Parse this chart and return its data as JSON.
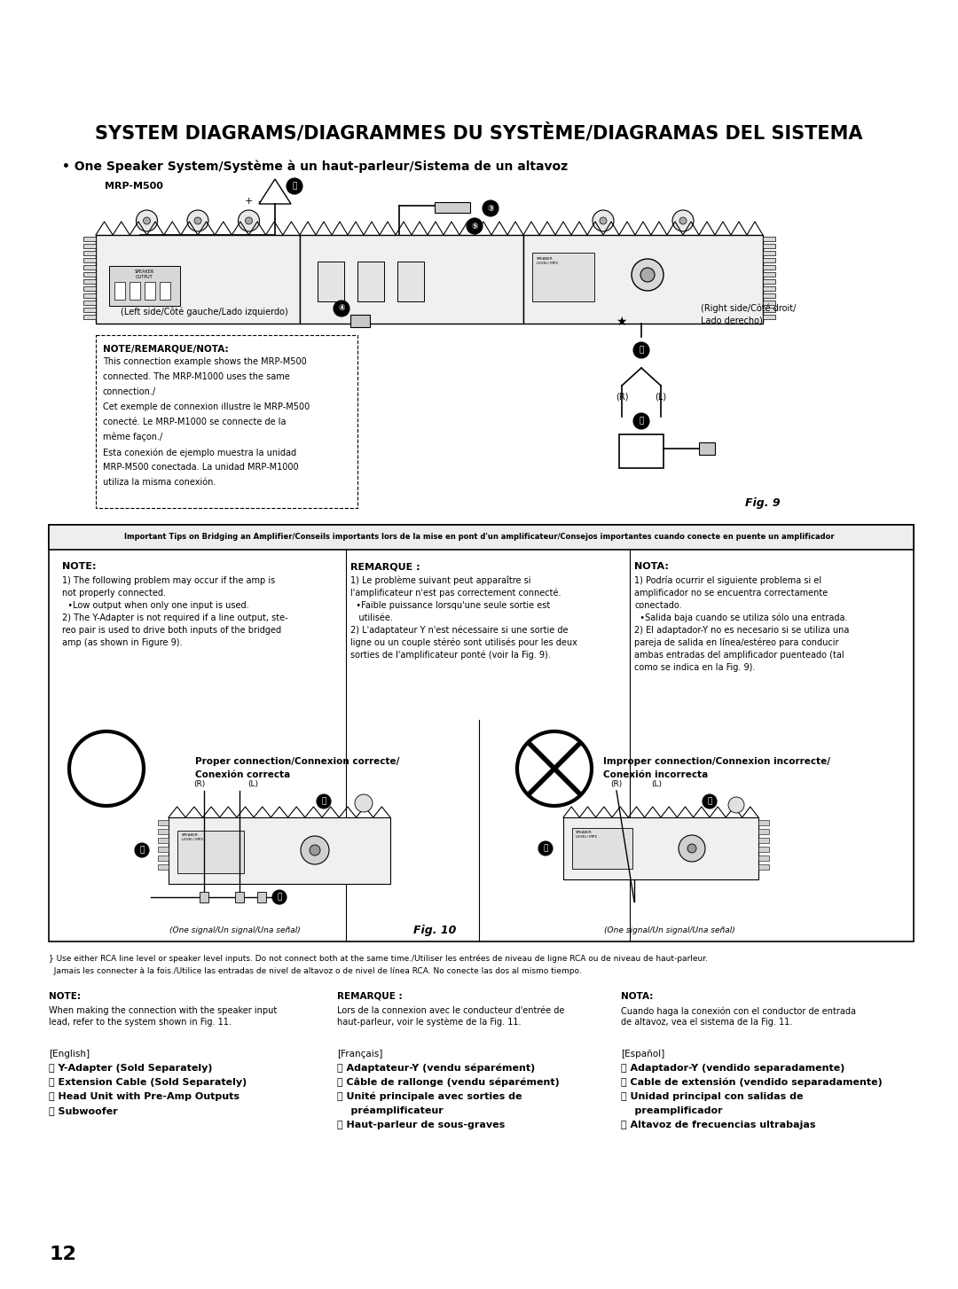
{
  "title": "SYSTEM DIAGRAMS/DIAGRAMMES DU SYSTÈME/DIAGRAMAS DEL SISTEMA",
  "subtitle": "• One Speaker System/Système à un haut-parleur/Sistema de un altavoz",
  "mrp_label": "MRP-M500",
  "left_side_label": "(Left side/Côté gauche/Lado izquierdo)",
  "right_side_label": "(Right side/Côté droit/\nLado derecho)",
  "fig9_label": "Fig. 9",
  "note_title": "NOTE/REMARQUE/NOTA:",
  "note_text_1": "This connection example shows the MRP-M500",
  "note_text_2": "connected. The MRP-M1000 uses the same",
  "note_text_3": "connection./",
  "note_text_4": "Cet exemple de connexion illustre le MRP-M500",
  "note_text_5": "conecté. Le MRP-M1000 se connecte de la",
  "note_text_6": "même façon./",
  "note_text_7": "Esta conexión de ejemplo muestra la unidad",
  "note_text_8": "MRP-M500 conectada. La unidad MRP-M1000",
  "note_text_9": "utiliza la misma conexión.",
  "bridging_title": "Important Tips on Bridging an Amplifier/Conseils importants lors de la mise en pont d'un amplificateur/Consejos importantes cuando conecte en puente un amplificador",
  "note2_title": "NOTE:",
  "note2_lines": [
    "1) The following problem may occur if the amp is",
    "not properly connected.",
    "  •Low output when only one input is used.",
    "2) The Y-Adapter is not required if a line output, ste-",
    "reo pair is used to drive both inputs of the bridged",
    "amp (as shown in Figure 9)."
  ],
  "remarque_title": "REMARQUE :",
  "remarque_lines": [
    "1) Le problème suivant peut apparaître si",
    "l'amplificateur n'est pas correctement connecté.",
    "  •Faible puissance lorsqu'une seule sortie est",
    "   utilisée.",
    "2) L'adaptateur Y n'est nécessaire si une sortie de",
    "ligne ou un couple stéréo sont utilisés pour les deux",
    "sorties de l'amplificateur ponté (voir la Fig. 9)."
  ],
  "nota_title": "NOTA:",
  "nota_lines": [
    "1) Podría ocurrir el siguiente problema si el",
    "amplificador no se encuentra correctamente",
    "conectado.",
    "  •Salida baja cuando se utiliza sólo una entrada.",
    "2) El adaptador-Y no es necesario si se utiliza una",
    "pareja de salida en línea/estéreo para conducir",
    "ambas entradas del amplificador puenteado (tal",
    "como se indica en la Fig. 9)."
  ],
  "proper_label_1": "Proper connection/Connexion correcte/",
  "proper_label_2": "Conexión correcta",
  "improper_label_1": "Improper connection/Connexion incorrecte/",
  "improper_label_2": "Conexión incorrecta",
  "fig10_label": "Fig. 10",
  "one_signal_label": "(One signal/Un signal/Una señal)",
  "one_signal_label2": "(One signal/Un signal/Una señal)",
  "footnote_1": "} Use either RCA line level or speaker level inputs. Do not connect both at the same time./Utiliser les entrées de niveau de ligne RCA ou de niveau de haut-parleur.",
  "footnote_2": "  Jamais les connecter à la fois./Utilice las entradas de nivel de altavoz o de nivel de línea RCA. No conecte las dos al mismo tiempo.",
  "note3_title": "NOTE:",
  "note3_text_1": "When making the connection with the speaker input",
  "note3_text_2": "lead, refer to the system shown in Fig. 11.",
  "remarque2_title": "REMARQUE :",
  "remarque2_text_1": "Lors de la connexion avec le conducteur d'entrée de",
  "remarque2_text_2": "haut-parleur, voir le système de la Fig. 11.",
  "nota2_title": "NOTA:",
  "nota2_text_1": "Cuando haga la conexión con el conductor de entrada",
  "nota2_text_2": "de altavoz, vea el sistema de la Fig. 11.",
  "english_title": "[English]",
  "english_items": [
    "ⓕ Y-Adapter (Sold Separately)",
    "ⓖ Extension Cable (Sold Separately)",
    "ⓗ Head Unit with Pre-Amp Outputs",
    "ⓘ Subwoofer"
  ],
  "francais_title": "[Français]",
  "francais_items": [
    "ⓕ Adaptateur-Y (vendu séparément)",
    "ⓖ Câble de rallonge (vendu séparément)",
    "ⓗ Unité principale avec sorties de",
    "    préamplificateur",
    "ⓘ Haut-parleur de sous-graves"
  ],
  "espanol_title": "[Español]",
  "espanol_items": [
    "ⓕ Adaptador-Y (vendido separadamente)",
    "ⓖ Cable de extensión (vendido separadamente)",
    "ⓗ Unidad principal con salidas de",
    "    preamplificador",
    "ⓘ Altavoz de frecuencias ultrabajas"
  ],
  "page_number": "12",
  "bg_color": "#ffffff"
}
